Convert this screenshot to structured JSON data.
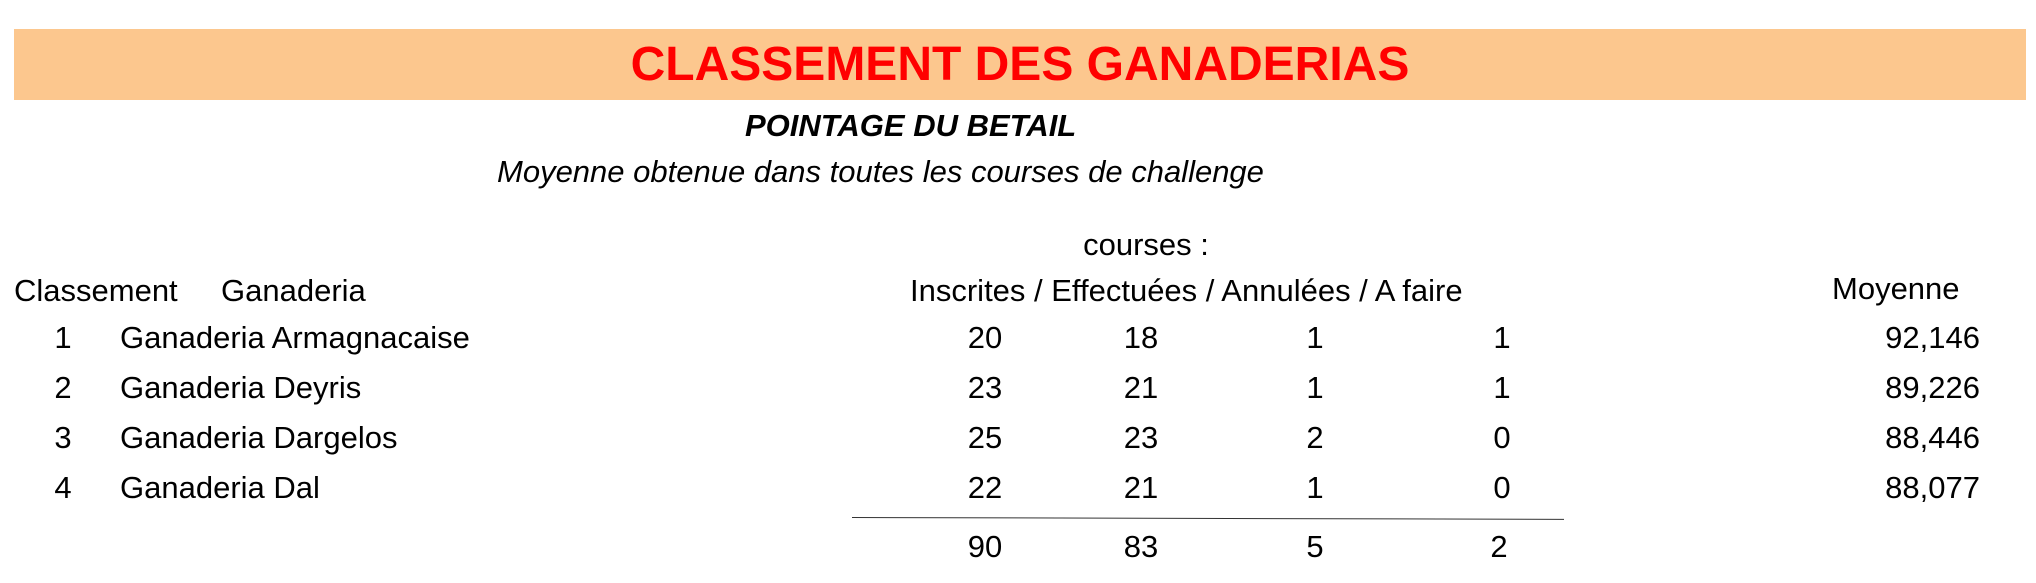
{
  "title": "CLASSEMENT DES GANADERIAS",
  "subtitle": "POINTAGE DU BETAIL",
  "description": "Moyenne obtenue dans toutes les courses de challenge",
  "colors": {
    "banner_bg": "#fcc78e",
    "title": "#ff0000",
    "text": "#000000"
  },
  "table": {
    "courses_label": "courses :",
    "headers": {
      "classement": "Classement",
      "ganaderia": "Ganaderia",
      "courses_columns": "Inscrites / Effectuées / Annulées / A faire",
      "moyenne": "Moyenne"
    },
    "rows": [
      {
        "rank": "1",
        "name": "Ganaderia Armagnacaise",
        "inscrites": "20",
        "effectuees": "18",
        "annulees": "1",
        "a_faire": "1",
        "moyenne": "92,146"
      },
      {
        "rank": "2",
        "name": "Ganaderia Deyris",
        "inscrites": "23",
        "effectuees": "21",
        "annulees": "1",
        "a_faire": "1",
        "moyenne": "89,226"
      },
      {
        "rank": "3",
        "name": "Ganaderia Dargelos",
        "inscrites": "25",
        "effectuees": "23",
        "annulees": "2",
        "a_faire": "0",
        "moyenne": "88,446"
      },
      {
        "rank": "4",
        "name": "Ganaderia Dal",
        "inscrites": "22",
        "effectuees": "21",
        "annulees": "1",
        "a_faire": "0",
        "moyenne": "88,077"
      }
    ],
    "totals": {
      "inscrites": "90",
      "effectuees": "83",
      "annulees": "5",
      "a_faire": "2"
    }
  }
}
